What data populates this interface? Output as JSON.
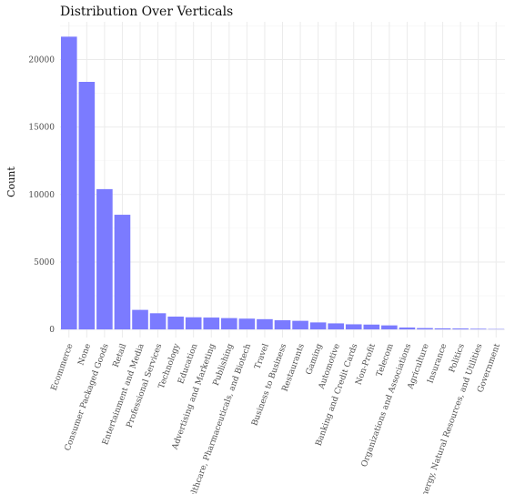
{
  "chart_data": {
    "type": "bar",
    "title": "Distribution Over Verticals",
    "xlabel": "",
    "ylabel": "Count",
    "ylim": [
      -600,
      22800
    ],
    "yticks": [
      0,
      5000,
      10000,
      15000,
      20000
    ],
    "grid": true,
    "bar_color": "#7b7bff",
    "categories": [
      "Ecommerce",
      "None",
      "Consumer Packaged Goods",
      "Retail",
      "Entertainment and Media",
      "Professional Services",
      "Technology",
      "Education",
      "Advertising and Marketing",
      "Publishing",
      "Healthcare, Pharmaceuticals, and Biotech",
      "Travel",
      "Business to Business",
      "Restaurants",
      "Gaming",
      "Automotive",
      "Banking and Credit Cards",
      "Non-Profit",
      "Telecom",
      "Organizations and Associations",
      "Agriculture",
      "Insurance",
      "Politics",
      "Energy, Natural Resources, and Utilities",
      "Government"
    ],
    "values": [
      21700,
      18350,
      10400,
      8500,
      1450,
      1200,
      950,
      900,
      880,
      840,
      800,
      760,
      680,
      640,
      520,
      450,
      380,
      360,
      300,
      140,
      100,
      80,
      70,
      50,
      30
    ]
  }
}
